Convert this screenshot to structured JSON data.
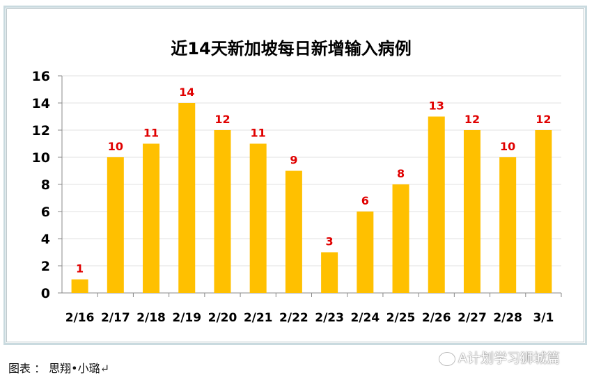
{
  "chart_data": {
    "type": "bar",
    "title": "近14天新加坡每日新增输入病例",
    "categories": [
      "2/16",
      "2/17",
      "2/18",
      "2/19",
      "2/20",
      "2/21",
      "2/22",
      "2/23",
      "2/24",
      "2/25",
      "2/26",
      "2/27",
      "2/28",
      "3/1"
    ],
    "values": [
      1,
      10,
      11,
      14,
      12,
      11,
      9,
      3,
      6,
      8,
      13,
      12,
      10,
      12
    ],
    "ylim": [
      0,
      16
    ],
    "yticks": [
      0,
      2,
      4,
      6,
      8,
      10,
      12,
      14,
      16
    ],
    "grid": true,
    "bar_color": "#ffc000",
    "label_color": "#e00000"
  },
  "caption": "图表 ： 思翔•小璐↵",
  "watermark": "A计划学习狮城篇"
}
